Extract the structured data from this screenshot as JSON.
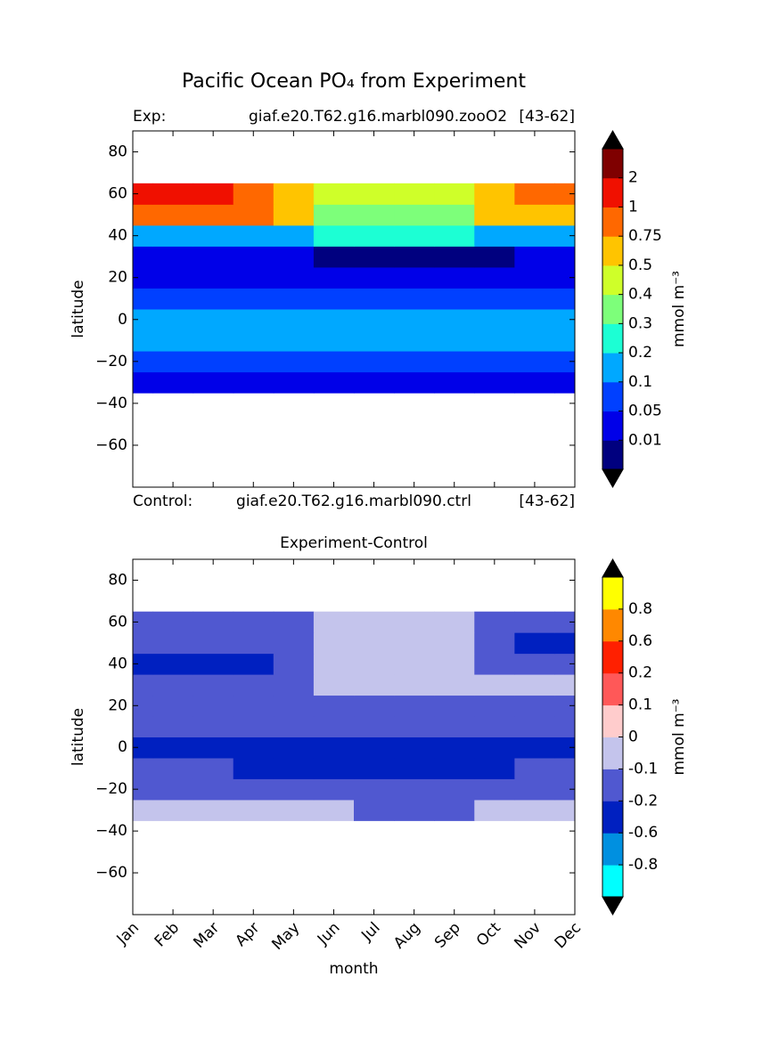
{
  "title": "Pacific Ocean PO₄ from Experiment",
  "chart_data": [
    {
      "type": "contour",
      "header": {
        "left": "Exp:",
        "center": "giaf.e20.T62.g16.marbl090.zooO2",
        "right": "[43-62]"
      },
      "footer": {
        "left": "Control:",
        "center": "giaf.e20.T62.g16.marbl090.ctrl",
        "right": "[43-62]"
      },
      "ylabel": "latitude",
      "categories": [
        null,
        null,
        null,
        null,
        null,
        null,
        null,
        null,
        null,
        null,
        null,
        null
      ],
      "y": [
        -30,
        -20,
        -10,
        0,
        10,
        20,
        30,
        40,
        50,
        60
      ],
      "z": [
        [
          0.04,
          0.04,
          0.04,
          0.04,
          0.04,
          0.04,
          0.04,
          0.04,
          0.04,
          0.04,
          0.04,
          0.04
        ],
        [
          0.08,
          0.08,
          0.08,
          0.08,
          0.08,
          0.08,
          0.08,
          0.08,
          0.08,
          0.08,
          0.08,
          0.08
        ],
        [
          0.12,
          0.12,
          0.12,
          0.12,
          0.12,
          0.12,
          0.12,
          0.12,
          0.12,
          0.12,
          0.12,
          0.12
        ],
        [
          0.12,
          0.12,
          0.12,
          0.12,
          0.12,
          0.12,
          0.12,
          0.12,
          0.12,
          0.12,
          0.12,
          0.12
        ],
        [
          0.08,
          0.08,
          0.08,
          0.08,
          0.08,
          0.08,
          0.08,
          0.08,
          0.08,
          0.08,
          0.08,
          0.08
        ],
        [
          0.04,
          0.04,
          0.04,
          0.04,
          0.04,
          0.04,
          0.04,
          0.04,
          0.04,
          0.04,
          0.04,
          0.04
        ],
        [
          0.03,
          0.03,
          0.03,
          0.03,
          0.03,
          0.008,
          0.008,
          0.008,
          0.008,
          0.008,
          0.03,
          0.03
        ],
        [
          0.15,
          0.15,
          0.15,
          0.15,
          0.15,
          0.2,
          0.2,
          0.2,
          0.2,
          0.15,
          0.15,
          0.15
        ],
        [
          0.8,
          0.9,
          0.9,
          0.8,
          0.55,
          0.35,
          0.3,
          0.3,
          0.35,
          0.5,
          0.55,
          0.6
        ],
        [
          1.5,
          1.5,
          1.5,
          0.9,
          0.7,
          0.45,
          0.42,
          0.42,
          0.45,
          0.55,
          0.85,
          0.9
        ]
      ],
      "ylim": [
        -80,
        90
      ],
      "yticks": [
        80,
        60,
        40,
        20,
        0,
        {
          "value": -20,
          "label": "−20"
        },
        {
          "value": -40,
          "label": "−40"
        },
        {
          "value": -60,
          "label": "−60"
        }
      ],
      "levels": [
        0.01,
        0.05,
        0.1,
        0.2,
        0.3,
        0.4,
        0.5,
        0.75,
        1,
        2
      ],
      "colors": [
        "#00007f",
        "#0000e8",
        "#0040ff",
        "#00a8ff",
        "#1cffd4",
        "#7dff7a",
        "#cfff29",
        "#ffc400",
        "#ff6800",
        "#f01000",
        "#7f0000"
      ],
      "extend_color": "#000000",
      "colorbar_label": "mmol m⁻³"
    },
    {
      "type": "contour",
      "title": "Experiment-Control",
      "xlabel": "month",
      "ylabel": "latitude",
      "categories": [
        "Jan",
        "Feb",
        "Mar",
        "Apr",
        "May",
        "Jun",
        "Jul",
        "Aug",
        "Sep",
        "Oct",
        "Nov",
        "Dec"
      ],
      "y": [
        -30,
        -20,
        -10,
        0,
        10,
        20,
        30,
        40,
        50,
        60
      ],
      "z": [
        [
          -0.05,
          -0.05,
          -0.05,
          -0.05,
          -0.05,
          -0.05,
          -0.15,
          -0.15,
          -0.15,
          -0.05,
          -0.05,
          -0.05
        ],
        [
          -0.15,
          -0.15,
          -0.15,
          -0.15,
          -0.15,
          -0.15,
          -0.15,
          -0.15,
          -0.15,
          -0.15,
          -0.15,
          -0.15
        ],
        [
          -0.15,
          -0.15,
          -0.15,
          -0.3,
          -0.3,
          -0.3,
          -0.3,
          -0.3,
          -0.3,
          -0.3,
          -0.15,
          -0.15
        ],
        [
          -0.3,
          -0.3,
          -0.3,
          -0.3,
          -0.3,
          -0.3,
          -0.3,
          -0.3,
          -0.3,
          -0.3,
          -0.3,
          -0.3
        ],
        [
          -0.15,
          -0.15,
          -0.15,
          -0.15,
          -0.15,
          -0.15,
          -0.15,
          -0.15,
          -0.15,
          -0.15,
          -0.15,
          -0.15
        ],
        [
          -0.15,
          -0.15,
          -0.15,
          -0.15,
          -0.15,
          -0.15,
          -0.15,
          -0.15,
          -0.15,
          -0.15,
          -0.15,
          -0.15
        ],
        [
          -0.15,
          -0.15,
          -0.15,
          -0.15,
          -0.15,
          -0.05,
          -0.05,
          -0.05,
          -0.05,
          -0.05,
          -0.05,
          -0.05
        ],
        [
          -0.3,
          -0.35,
          -0.35,
          -0.3,
          -0.15,
          -0.05,
          -0.05,
          -0.05,
          -0.08,
          -0.15,
          -0.15,
          -0.15
        ],
        [
          -0.15,
          -0.15,
          -0.15,
          -0.15,
          -0.15,
          -0.05,
          -0.05,
          -0.05,
          -0.05,
          -0.15,
          -0.3,
          -0.3
        ],
        [
          -0.15,
          -0.15,
          -0.15,
          -0.15,
          -0.15,
          -0.05,
          -0.05,
          -0.05,
          -0.05,
          -0.15,
          -0.15,
          -0.15
        ]
      ],
      "ylim": [
        -80,
        90
      ],
      "yticks": [
        80,
        60,
        40,
        20,
        0,
        {
          "value": -20,
          "label": "−20"
        },
        {
          "value": -40,
          "label": "−40"
        },
        {
          "value": -60,
          "label": "−60"
        }
      ],
      "levels": [
        {
          "value": -0.8,
          "label": "-0.8"
        },
        {
          "value": -0.6,
          "label": "-0.6"
        },
        {
          "value": -0.2,
          "label": "-0.2"
        },
        {
          "value": -0.1,
          "label": "-0.1"
        },
        0,
        0.1,
        0.2,
        0.6,
        0.8
      ],
      "colors": [
        "#00ffff",
        "#0090e0",
        "#0020c0",
        "#5058d0",
        "#c4c4ec",
        "#ffcccc",
        "#ff5858",
        "#ff2000",
        "#ff8800",
        "#ffff00"
      ],
      "extend_color": "#000000",
      "colorbar_label": "mmol m⁻³"
    }
  ]
}
